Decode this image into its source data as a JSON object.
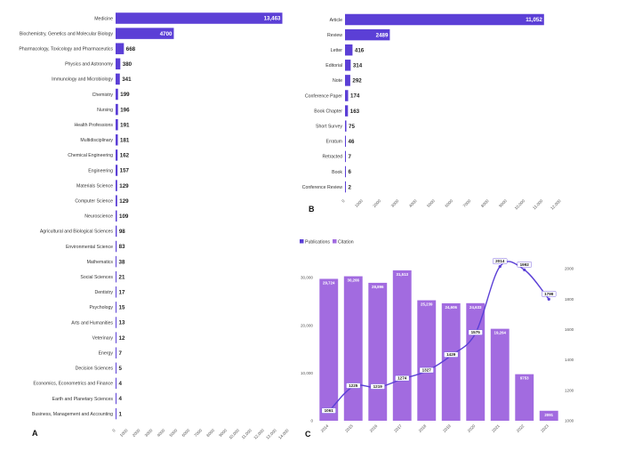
{
  "panel_labels": {
    "a": "A",
    "b": "B",
    "c": "C"
  },
  "chart_data": [
    {
      "type": "bar",
      "orientation": "horizontal",
      "categories": [
        "Medicine",
        "Biochemistry, Genetics and Molecular Biology",
        "Pharmacology, Toxicology and Pharmaceutics",
        "Physics and Astronomy",
        "Immunology and Microbiology",
        "Chemistry",
        "Nursing",
        "Health Professions",
        "Multidisciplinary",
        "Chemical Engineering",
        "Engineering",
        "Materials Science",
        "Computer Science",
        "Neuroscience",
        "Agricultural and Biological Sciences",
        "Environmental Science",
        "Mathematics",
        "Social Sciences",
        "Dentistry",
        "Psychology",
        "Arts and Humanities",
        "Veterinary",
        "Energy",
        "Decision Sciences",
        "Economics, Econometrics and Finance",
        "Earth and Planetary Sciences",
        "Business, Management and Accounting"
      ],
      "values": [
        13463,
        4700,
        668,
        380,
        341,
        199,
        196,
        191,
        181,
        162,
        157,
        129,
        129,
        109,
        98,
        83,
        38,
        21,
        17,
        15,
        13,
        12,
        7,
        5,
        4,
        4,
        1
      ],
      "value_labels": [
        "13,463",
        "4700",
        "668",
        "380",
        "341",
        "199",
        "196",
        "191",
        "181",
        "162",
        "157",
        "129",
        "129",
        "109",
        "98",
        "83",
        "38",
        "21",
        "17",
        "15",
        "13",
        "12",
        "7",
        "5",
        "4",
        "4",
        "1"
      ],
      "xlim": [
        0,
        14000
      ],
      "xticks": [
        "0",
        "1000",
        "2000",
        "3000",
        "4000",
        "5000",
        "6000",
        "7000",
        "8000",
        "9000",
        "10,000",
        "11,000",
        "12,000",
        "13,000",
        "14,000"
      ],
      "color": "#5B3FD6"
    },
    {
      "type": "bar",
      "orientation": "horizontal",
      "categories": [
        "Article",
        "Review",
        "Letter",
        "Editorial",
        "Note",
        "Conference Paper",
        "Book Chapter",
        "Short Survey",
        "Erratum",
        "Retracted",
        "Book",
        "Conference Review"
      ],
      "values": [
        11052,
        2489,
        416,
        314,
        292,
        174,
        163,
        75,
        46,
        7,
        6,
        2
      ],
      "value_labels": [
        "11,052",
        "2489",
        "416",
        "314",
        "292",
        "174",
        "163",
        "75",
        "46",
        "7",
        "6",
        "2"
      ],
      "xlim": [
        0,
        12000
      ],
      "xticks": [
        "0",
        "1000",
        "2000",
        "3000",
        "4000",
        "5000",
        "6000",
        "7000",
        "8000",
        "9000",
        "10,000",
        "11,000",
        "12,000"
      ],
      "color": "#5B3FD6"
    },
    {
      "type": "bar+line",
      "categories": [
        "2014",
        "2015",
        "2016",
        "2017",
        "2018",
        "2019",
        "2020",
        "2021",
        "2022",
        "2023"
      ],
      "legend": [
        "Publications",
        "Citation"
      ],
      "legend_colors": [
        "#5B3FD6",
        "#A26BE0"
      ],
      "series": [
        {
          "name": "Citation",
          "type": "bar",
          "axis": "left",
          "values": [
            29724,
            30266,
            28896,
            31513,
            25239,
            24606,
            24633,
            19264,
            9753,
            2091
          ],
          "labels": [
            "29,724",
            "30,266",
            "28,896",
            "31,513",
            "25,239",
            "24,606",
            "24,633",
            "19,264",
            "9753",
            "2091"
          ],
          "color": "#A26BE0"
        },
        {
          "name": "Publications",
          "type": "line",
          "axis": "right",
          "values": [
            1061,
            1225,
            1219,
            1274,
            1327,
            1429,
            1575,
            2014,
            1992,
            1799
          ],
          "labels": [
            "1061",
            "1225",
            "1219",
            "1274",
            "1327",
            "1429",
            "1575",
            "2014",
            "1992",
            "1799"
          ],
          "color": "#5B3FD6"
        }
      ],
      "ylim_left": [
        0,
        31513
      ],
      "yticks_left": [
        "0",
        "10,000",
        "20,000",
        "30,000"
      ],
      "ylim_right": [
        1000,
        2000
      ],
      "yticks_right": [
        "1000",
        "1200",
        "1400",
        "1600",
        "1800",
        "2000"
      ]
    }
  ]
}
